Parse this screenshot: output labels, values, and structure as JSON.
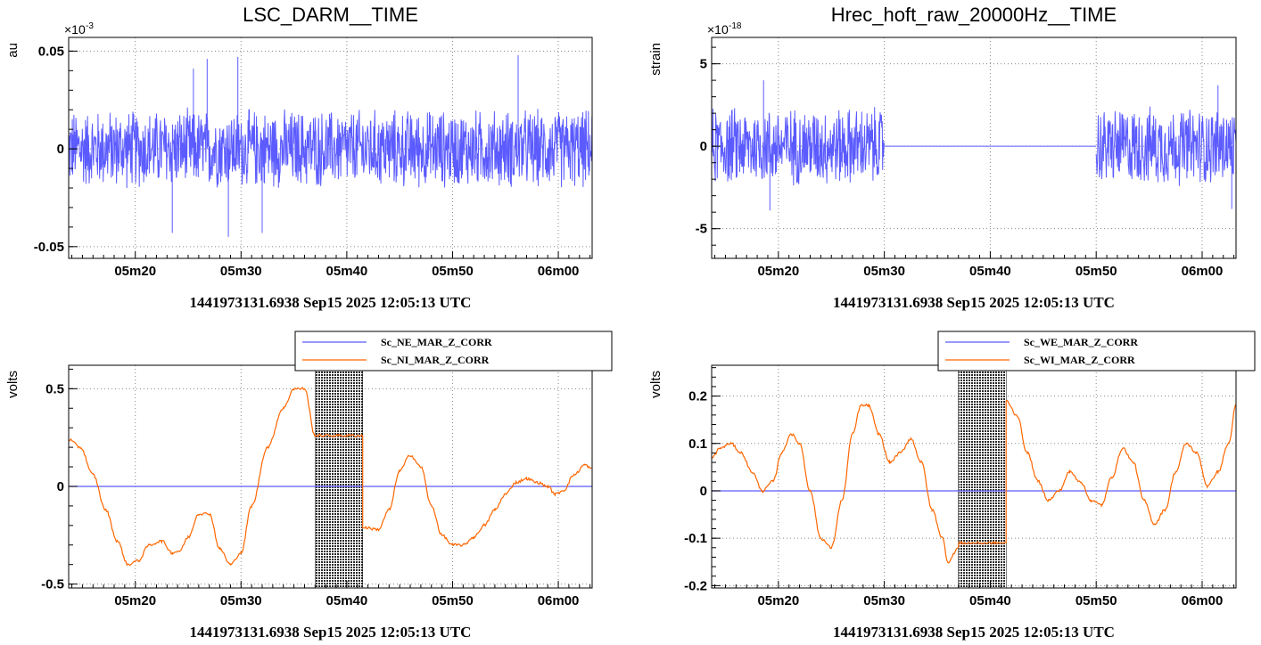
{
  "colors": {
    "series_blue": "#5b5bff",
    "series_orange": "#ff6600",
    "hatch": "#2a2a2a",
    "grid": "#888888"
  },
  "chart_data": [
    {
      "id": "p1",
      "type": "line",
      "title": "LSC_DARM__TIME",
      "ylabel": "au",
      "xlabel": "1441973131.6938 Sep15 2025 12:05:13 UTC",
      "y_multiplier": "×10",
      "y_multiplier_exp": "-3",
      "xlim": [
        313.7,
        363.2
      ],
      "ylim": [
        -0.056,
        0.057
      ],
      "x_ticks": [
        {
          "v": 320,
          "label": "05m20"
        },
        {
          "v": 330,
          "label": "05m30"
        },
        {
          "v": 340,
          "label": "05m40"
        },
        {
          "v": 350,
          "label": "05m50"
        },
        {
          "v": 360,
          "label": "06m00"
        }
      ],
      "y_ticks": [
        {
          "v": 0.05,
          "label": "0.05"
        },
        {
          "v": 0,
          "label": "0"
        },
        {
          "v": -0.05,
          "label": "-0.05"
        }
      ],
      "grid": true,
      "series": [
        {
          "color": "#5b5bff",
          "kind": "noise",
          "segments": [
            {
              "x": [
                313.7,
                363.2
              ],
              "amplitude": 0.022,
              "bursts": [
                {
                  "x": 326.8,
                  "y": 0.046
                },
                {
                  "x": 329.7,
                  "y": 0.047
                },
                {
                  "x": 328.8,
                  "y": -0.045
                },
                {
                  "x": 323.5,
                  "y": -0.043
                },
                {
                  "x": 332.0,
                  "y": -0.043
                },
                {
                  "x": 356.2,
                  "y": 0.048
                },
                {
                  "x": 325.5,
                  "y": 0.041
                }
              ]
            }
          ]
        }
      ]
    },
    {
      "id": "p2",
      "type": "line",
      "title": "Hrec_hoft_raw_20000Hz__TIME",
      "ylabel": "strain",
      "xlabel": "1441973131.6938 Sep15 2025 12:05:13 UTC",
      "y_multiplier": "×10",
      "y_multiplier_exp": "-18",
      "xlim": [
        313.7,
        363.2
      ],
      "ylim": [
        -6.8,
        6.6
      ],
      "x_ticks": [
        {
          "v": 320,
          "label": "05m20"
        },
        {
          "v": 330,
          "label": "05m30"
        },
        {
          "v": 340,
          "label": "05m40"
        },
        {
          "v": 350,
          "label": "05m50"
        },
        {
          "v": 360,
          "label": "06m00"
        }
      ],
      "y_ticks": [
        {
          "v": 5,
          "label": "5"
        },
        {
          "v": 0,
          "label": "0"
        },
        {
          "v": -5,
          "label": "-5"
        }
      ],
      "grid": true,
      "series": [
        {
          "color": "#5b5bff",
          "kind": "noise",
          "segments": [
            {
              "x": [
                313.7,
                330.0
              ],
              "amplitude": 2.6,
              "bursts": [
                {
                  "x": 318.6,
                  "y": 4.0
                },
                {
                  "x": 319.2,
                  "y": -3.9
                }
              ]
            },
            {
              "x": [
                330.0,
                350.0
              ],
              "amplitude": 0,
              "bursts": []
            },
            {
              "x": [
                350.0,
                363.2
              ],
              "amplitude": 2.6,
              "bursts": [
                {
                  "x": 361.5,
                  "y": 3.7
                },
                {
                  "x": 362.8,
                  "y": -3.8
                }
              ]
            }
          ]
        }
      ]
    },
    {
      "id": "p3",
      "type": "line",
      "ylabel": "volts",
      "xlabel": "1441973131.6938 Sep15 2025 12:05:13 UTC",
      "xlim": [
        313.7,
        363.2
      ],
      "ylim": [
        -0.52,
        0.62
      ],
      "x_ticks": [
        {
          "v": 320,
          "label": "05m20"
        },
        {
          "v": 330,
          "label": "05m30"
        },
        {
          "v": 340,
          "label": "05m40"
        },
        {
          "v": 350,
          "label": "05m50"
        },
        {
          "v": 360,
          "label": "06m00"
        }
      ],
      "y_ticks": [
        {
          "v": 0.5,
          "label": "0.5"
        },
        {
          "v": 0,
          "label": "0"
        },
        {
          "v": -0.5,
          "label": "-0.5"
        }
      ],
      "grid": true,
      "hatched_region": [
        337.0,
        341.5
      ],
      "legend": [
        "Sc_NE_MAR_Z_CORR",
        "Sc_NI_MAR_Z_CORR"
      ],
      "series": [
        {
          "name": "Sc_NE_MAR_Z_CORR",
          "color": "#5b5bff",
          "x": [
            313.7,
            363.2
          ],
          "y": [
            0,
            0
          ]
        },
        {
          "name": "Sc_NI_MAR_Z_CORR",
          "color": "#ff6600",
          "x": [
            313.7,
            314.8,
            316.0,
            317.2,
            318.3,
            319.3,
            320.3,
            321.3,
            322.5,
            323.5,
            324.2,
            325.0,
            326.0,
            327.0,
            328.0,
            329.0,
            330.0,
            331.0,
            332.5,
            334.0,
            335.0,
            336.0,
            337.0,
            337.0,
            341.5,
            341.5,
            343.0,
            344.0,
            345.0,
            346.0,
            347.0,
            348.0,
            349.0,
            350.0,
            351.0,
            352.0,
            353.0,
            354.0,
            355.0,
            356.0,
            357.0,
            358.0,
            359.0,
            359.7,
            360.5,
            361.5,
            362.5,
            363.2
          ],
          "y": [
            0.24,
            0.2,
            0.06,
            -0.12,
            -0.28,
            -0.4,
            -0.38,
            -0.3,
            -0.28,
            -0.34,
            -0.33,
            -0.26,
            -0.14,
            -0.14,
            -0.32,
            -0.4,
            -0.34,
            -0.1,
            0.2,
            0.4,
            0.5,
            0.5,
            0.26,
            0.26,
            0.26,
            -0.21,
            -0.22,
            -0.12,
            0.08,
            0.16,
            0.1,
            -0.1,
            -0.25,
            -0.3,
            -0.3,
            -0.26,
            -0.2,
            -0.12,
            -0.04,
            0.02,
            0.04,
            0.02,
            0.0,
            -0.04,
            -0.02,
            0.06,
            0.11,
            0.09
          ]
        }
      ]
    },
    {
      "id": "p4",
      "type": "line",
      "ylabel": "volts",
      "xlabel": "1441973131.6938 Sep15 2025 12:05:13 UTC",
      "xlim": [
        313.7,
        363.2
      ],
      "ylim": [
        -0.205,
        0.265
      ],
      "x_ticks": [
        {
          "v": 320,
          "label": "05m20"
        },
        {
          "v": 330,
          "label": "05m30"
        },
        {
          "v": 340,
          "label": "05m40"
        },
        {
          "v": 350,
          "label": "05m50"
        },
        {
          "v": 360,
          "label": "06m00"
        }
      ],
      "y_ticks": [
        {
          "v": 0.2,
          "label": "0.2"
        },
        {
          "v": 0.1,
          "label": "0.1"
        },
        {
          "v": 0,
          "label": "0"
        },
        {
          "v": -0.1,
          "label": "-0.1"
        },
        {
          "v": -0.2,
          "label": "-0.2"
        }
      ],
      "grid": true,
      "hatched_region": [
        337.0,
        341.5
      ],
      "legend": [
        "Sc_WE_MAR_Z_CORR",
        "Sc_WI_MAR_Z_CORR"
      ],
      "series": [
        {
          "name": "Sc_WE_MAR_Z_CORR",
          "color": "#5b5bff",
          "x": [
            313.7,
            363.2
          ],
          "y": [
            0,
            0
          ]
        },
        {
          "name": "Sc_WI_MAR_Z_CORR",
          "color": "#ff6600",
          "x": [
            313.7,
            314.5,
            315.5,
            316.5,
            317.5,
            318.5,
            319.5,
            320.3,
            321.2,
            322.0,
            323.0,
            324.0,
            325.0,
            326.0,
            327.0,
            327.8,
            328.5,
            329.5,
            330.5,
            331.5,
            332.5,
            333.5,
            334.5,
            335.5,
            336.0,
            337.0,
            337.0,
            341.5,
            341.5,
            342.5,
            343.5,
            344.5,
            345.5,
            346.5,
            347.5,
            348.5,
            349.5,
            350.5,
            351.5,
            352.5,
            353.5,
            354.5,
            355.5,
            356.5,
            357.5,
            358.5,
            359.5,
            360.5,
            361.5,
            362.5,
            363.2
          ],
          "y": [
            0.07,
            0.09,
            0.1,
            0.08,
            0.04,
            0.0,
            0.02,
            0.08,
            0.12,
            0.1,
            0.0,
            -0.1,
            -0.12,
            -0.02,
            0.12,
            0.18,
            0.18,
            0.12,
            0.06,
            0.08,
            0.11,
            0.06,
            -0.04,
            -0.1,
            -0.15,
            -0.12,
            -0.11,
            -0.11,
            0.19,
            0.16,
            0.08,
            0.02,
            -0.02,
            0.0,
            0.04,
            0.02,
            -0.02,
            -0.03,
            0.03,
            0.09,
            0.06,
            -0.02,
            -0.07,
            -0.04,
            0.04,
            0.1,
            0.08,
            0.01,
            0.04,
            0.1,
            0.18
          ]
        }
      ]
    }
  ]
}
